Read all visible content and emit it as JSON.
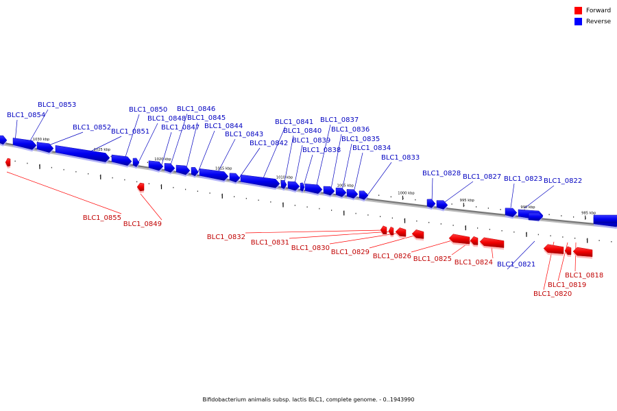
{
  "caption": "Bifidobacterium animalis subsp. lactis BLC1, complete genome. - 0..1943990",
  "legend": [
    {
      "label": "Forward",
      "color": "#ff0000"
    },
    {
      "label": "Reverse",
      "color": "#0000ff"
    }
  ],
  "colors": {
    "forward": "#ff0000",
    "forward_label": "#c00000",
    "reverse": "#0000ff",
    "reverse_label": "#0000c0",
    "backbone": "#777777",
    "tick": "#000000"
  },
  "chart_data": {
    "type": "genome-map",
    "sequence_range": [
      0,
      1943990
    ],
    "ticks_kbp": [
      {
        "kbp": 1030,
        "label": "1030 kbp"
      },
      {
        "kbp": 1025,
        "label": "1025 kbp"
      },
      {
        "kbp": 1020,
        "label": "1020 kbp"
      },
      {
        "kbp": 1015,
        "label": "1015 kbp"
      },
      {
        "kbp": 1010,
        "label": "1010 kbp"
      },
      {
        "kbp": 1005,
        "label": "1005 kbp"
      },
      {
        "kbp": 1000,
        "label": "1000 kbp"
      },
      {
        "kbp": 995,
        "label": "995 kbp"
      },
      {
        "kbp": 990,
        "label": "990 kbp"
      },
      {
        "kbp": 985,
        "label": "985 kbp"
      }
    ],
    "genes": [
      {
        "id": "BLC1_0855",
        "strand": "forward"
      },
      {
        "id": "BLC1_0854",
        "strand": "reverse"
      },
      {
        "id": "BLC1_0853",
        "strand": "reverse"
      },
      {
        "id": "BLC1_0852",
        "strand": "reverse"
      },
      {
        "id": "BLC1_0851",
        "strand": "reverse"
      },
      {
        "id": "BLC1_0850",
        "strand": "reverse"
      },
      {
        "id": "BLC1_0849",
        "strand": "forward"
      },
      {
        "id": "BLC1_0848",
        "strand": "reverse"
      },
      {
        "id": "BLC1_0847",
        "strand": "reverse"
      },
      {
        "id": "BLC1_0846",
        "strand": "reverse"
      },
      {
        "id": "BLC1_0845",
        "strand": "reverse"
      },
      {
        "id": "BLC1_0844",
        "strand": "reverse"
      },
      {
        "id": "BLC1_0843",
        "strand": "reverse"
      },
      {
        "id": "BLC1_0842",
        "strand": "reverse"
      },
      {
        "id": "BLC1_0841",
        "strand": "reverse"
      },
      {
        "id": "BLC1_0840",
        "strand": "reverse"
      },
      {
        "id": "BLC1_0839",
        "strand": "reverse"
      },
      {
        "id": "BLC1_0838",
        "strand": "reverse"
      },
      {
        "id": "BLC1_0837",
        "strand": "reverse"
      },
      {
        "id": "BLC1_0836",
        "strand": "reverse"
      },
      {
        "id": "BLC1_0835",
        "strand": "reverse"
      },
      {
        "id": "BLC1_0834",
        "strand": "reverse"
      },
      {
        "id": "BLC1_0833",
        "strand": "reverse"
      },
      {
        "id": "BLC1_0832",
        "strand": "forward"
      },
      {
        "id": "BLC1_0831",
        "strand": "forward"
      },
      {
        "id": "BLC1_0830",
        "strand": "forward"
      },
      {
        "id": "BLC1_0829",
        "strand": "forward"
      },
      {
        "id": "BLC1_0828",
        "strand": "reverse"
      },
      {
        "id": "BLC1_0827",
        "strand": "reverse"
      },
      {
        "id": "BLC1_0826",
        "strand": "forward"
      },
      {
        "id": "BLC1_0825",
        "strand": "forward"
      },
      {
        "id": "BLC1_0824",
        "strand": "forward"
      },
      {
        "id": "BLC1_0823",
        "strand": "reverse"
      },
      {
        "id": "BLC1_0822",
        "strand": "reverse"
      },
      {
        "id": "BLC1_0821",
        "strand": "reverse"
      },
      {
        "id": "BLC1_0820",
        "strand": "forward"
      },
      {
        "id": "BLC1_0819",
        "strand": "forward"
      },
      {
        "id": "BLC1_0818",
        "strand": "forward"
      }
    ]
  }
}
